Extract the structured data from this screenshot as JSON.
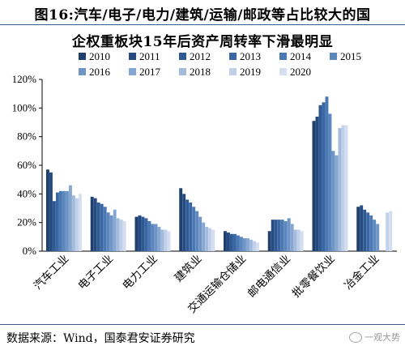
{
  "figure": {
    "title_line1": "图16:汽车/电子/电力/建筑/运输/邮政等占比较大的国",
    "title_line2": "企权重板块15年后资产周转率下滑最明显",
    "source": "数据来源：Wind，国泰君安证券研究",
    "watermark": "一观大势"
  },
  "chart_data": {
    "type": "bar",
    "categories": [
      "汽车工业",
      "电子工业",
      "电力工业",
      "建筑业",
      "交通运输仓储业",
      "邮电通信业",
      "批零餐饮业",
      "冶金工业"
    ],
    "ylim": [
      0,
      1.2
    ],
    "yticks": [
      "0%",
      "20%",
      "40%",
      "60%",
      "80%",
      "100%",
      "120%"
    ],
    "grid": false,
    "legend": "top",
    "colors": [
      "#1f3f6e",
      "#244a80",
      "#2e5a93",
      "#3a67a3",
      "#4a78b3",
      "#5b86be",
      "#6e95c6",
      "#86a7d2",
      "#a3bcdd",
      "#bfd0e8",
      "#d3dff0"
    ],
    "series": [
      {
        "name": "2010",
        "values": [
          0.57,
          0.38,
          0.24,
          0.44,
          0.14,
          0.14,
          0.91,
          0.31
        ]
      },
      {
        "name": "2011",
        "values": [
          0.55,
          0.37,
          0.25,
          0.4,
          0.13,
          0.22,
          0.94,
          0.32
        ]
      },
      {
        "name": "2012",
        "values": [
          0.35,
          0.34,
          0.24,
          0.36,
          0.12,
          0.22,
          1.02,
          0.29
        ]
      },
      {
        "name": "2013",
        "values": [
          0.41,
          0.33,
          0.23,
          0.34,
          0.12,
          0.22,
          1.04,
          0.27
        ]
      },
      {
        "name": "2014",
        "values": [
          0.42,
          0.31,
          0.21,
          0.31,
          0.11,
          0.22,
          1.08,
          0.25
        ]
      },
      {
        "name": "2015",
        "values": [
          0.42,
          0.27,
          0.19,
          0.28,
          0.1,
          0.21,
          0.96,
          0.22
        ]
      },
      {
        "name": "2016",
        "values": [
          0.42,
          0.25,
          0.19,
          0.24,
          0.09,
          0.23,
          0.7,
          0.19
        ]
      },
      {
        "name": "2017",
        "values": [
          0.46,
          0.29,
          0.17,
          0.2,
          0.09,
          0.19,
          0.67,
          null
        ]
      },
      {
        "name": "2018",
        "values": [
          0.39,
          0.23,
          0.15,
          0.17,
          0.08,
          0.15,
          0.86,
          null
        ]
      },
      {
        "name": "2019",
        "values": [
          0.37,
          0.22,
          0.15,
          0.16,
          0.07,
          0.15,
          0.88,
          0.27
        ]
      },
      {
        "name": "2020",
        "values": [
          0.4,
          0.21,
          0.14,
          0.15,
          0.06,
          0.14,
          0.88,
          0.28
        ]
      }
    ]
  }
}
